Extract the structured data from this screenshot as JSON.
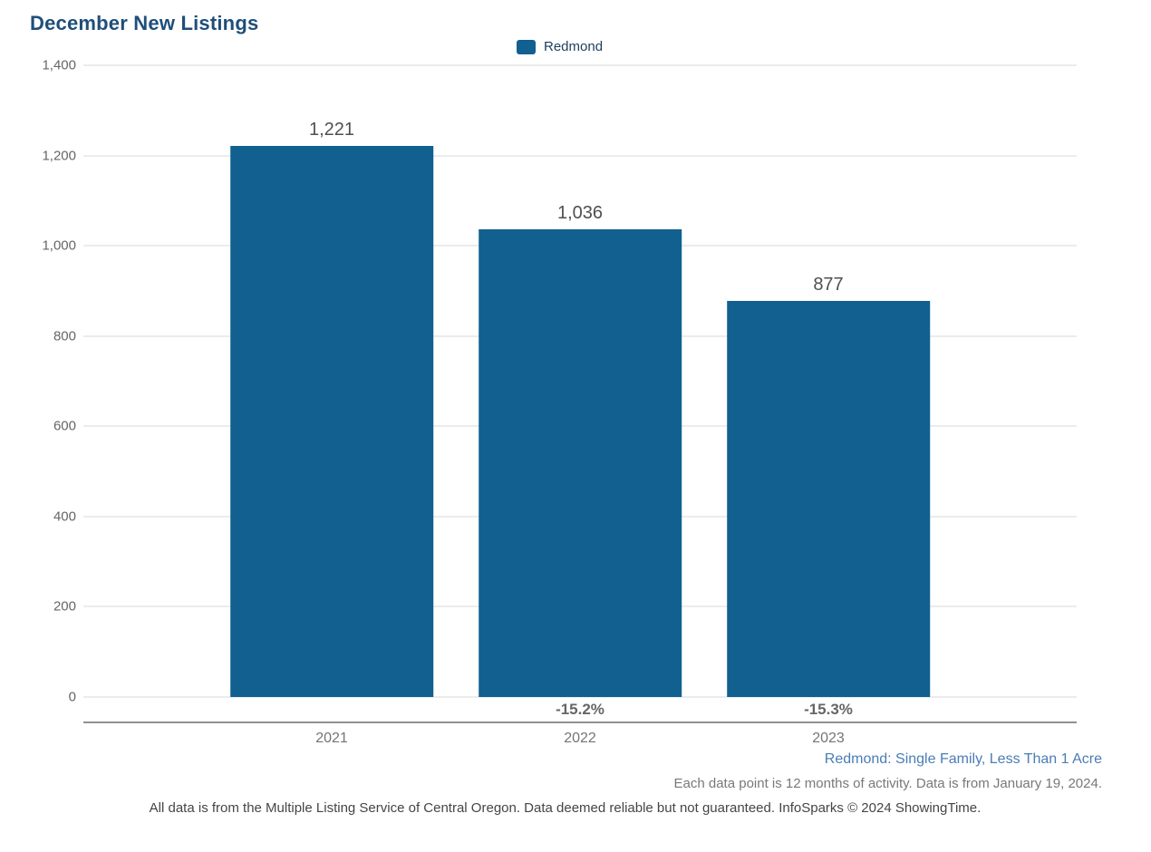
{
  "page": {
    "title": "December New Listings"
  },
  "legend": {
    "series_label": "Redmond"
  },
  "footnotes": {
    "segment": "Redmond: Single Family, Less Than 1 Acre",
    "data_period": "Each data point is 12 months of activity. Data is from January 19, 2024.",
    "disclaimer": "All data is from the Multiple Listing Service of Central Oregon. Data deemed reliable but not guaranteed. InfoSparks © 2024 ShowingTime."
  },
  "chart_data": {
    "type": "bar",
    "title": "December New Listings",
    "categories": [
      "2021",
      "2022",
      "2023"
    ],
    "series": [
      {
        "name": "Redmond",
        "values": [
          1221,
          1036,
          877
        ]
      }
    ],
    "value_labels": [
      "1,221",
      "1,036",
      "877"
    ],
    "pct_change_labels": [
      "",
      "-15.2%",
      "-15.3%"
    ],
    "xlabel": "",
    "ylabel": "",
    "ylim": [
      0,
      1400
    ],
    "ytick_step": 200,
    "yticks": [
      "1,400",
      "1,200",
      "1,000",
      "800",
      "600",
      "400",
      "200",
      "0"
    ],
    "grid": true,
    "legend_position": "top-center",
    "bar_color": "#116090",
    "title_color": "#1F4E79",
    "axis_line_color": "#909090",
    "gridline_color": "#ECECEC"
  }
}
